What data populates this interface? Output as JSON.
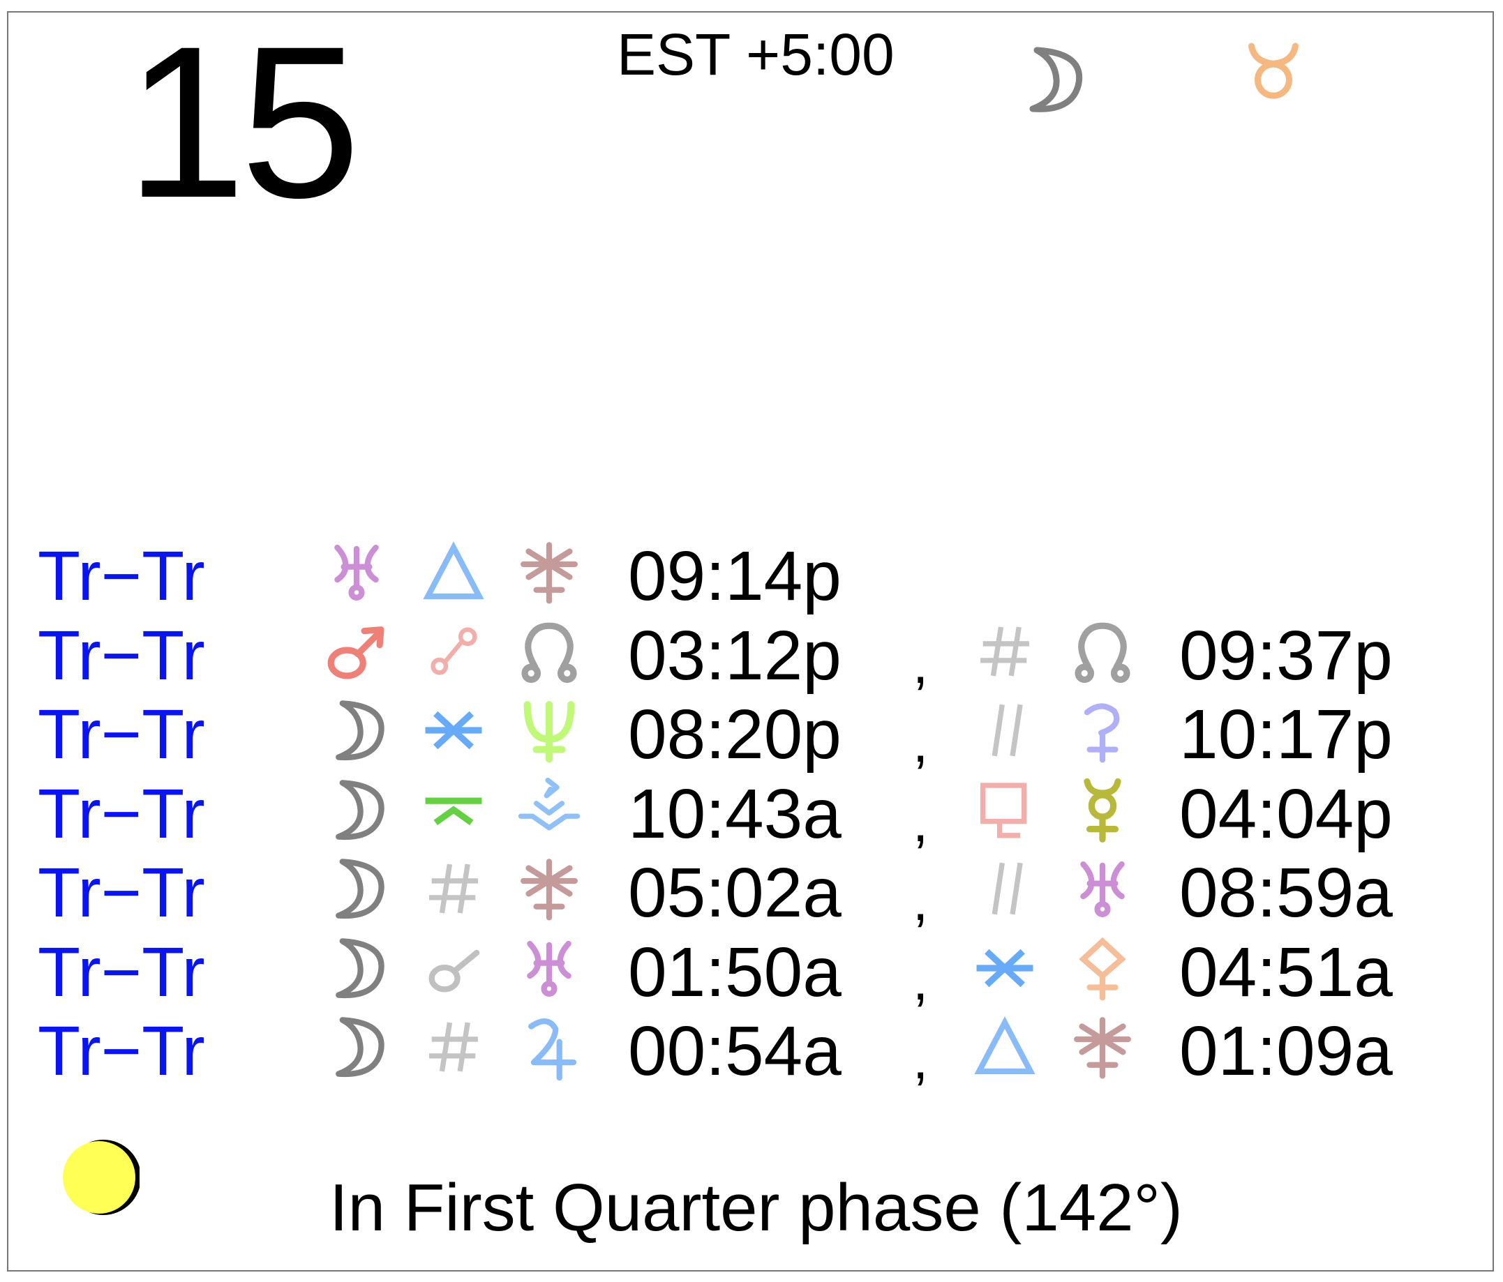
{
  "header": {
    "day": "15",
    "timezone": "EST +5:00",
    "moon_sign_icons": [
      {
        "icon": "moon-icon",
        "color": "#808080"
      },
      {
        "icon": "taurus-icon",
        "color": "#f5b880"
      }
    ]
  },
  "aspects": [
    {
      "label": "Tr−Tr",
      "planet": {
        "icon": "uranus",
        "color": "#cc8fd6"
      },
      "aspect": {
        "icon": "trine",
        "color": "#88bbf8"
      },
      "target": {
        "icon": "juno",
        "color": "#c49a9a"
      },
      "time": "09:14p",
      "second": null
    },
    {
      "label": "Tr−Tr",
      "planet": {
        "icon": "mars",
        "color": "#ee8078"
      },
      "aspect": {
        "icon": "opposition",
        "color": "#f2aeaa"
      },
      "target": {
        "icon": "node",
        "color": "#a0a0a0"
      },
      "time": "03:12p",
      "separator": ",",
      "second": {
        "aspect": {
          "icon": "parallel",
          "color": "#c4c4c4"
        },
        "target": {
          "icon": "node",
          "color": "#a0a0a0"
        },
        "time": "09:37p"
      }
    },
    {
      "label": "Tr−Tr",
      "planet": {
        "icon": "moon",
        "color": "#808080"
      },
      "aspect": {
        "icon": "sextile",
        "color": "#66aaf8"
      },
      "target": {
        "icon": "neptune",
        "color": "#c0f878"
      },
      "time": "08:20p",
      "separator": ",",
      "second": {
        "aspect": {
          "icon": "contraparallel",
          "color": "#c4c4c4"
        },
        "target": {
          "icon": "ceres",
          "color": "#b0b0f8"
        },
        "time": "10:17p"
      }
    },
    {
      "label": "Tr−Tr",
      "planet": {
        "icon": "moon",
        "color": "#808080"
      },
      "aspect": {
        "icon": "quincunx",
        "color": "#66d044"
      },
      "target": {
        "icon": "vesta",
        "color": "#90c0f8"
      },
      "time": "10:43a",
      "separator": ",",
      "second": {
        "aspect": {
          "icon": "sesquiquadrate",
          "color": "#f2aeaa"
        },
        "target": {
          "icon": "mercury",
          "color": "#b8b83a"
        },
        "time": "04:04p"
      }
    },
    {
      "label": "Tr−Tr",
      "planet": {
        "icon": "moon",
        "color": "#808080"
      },
      "aspect": {
        "icon": "parallel",
        "color": "#c4c4c4"
      },
      "target": {
        "icon": "juno",
        "color": "#c49a9a"
      },
      "time": "05:02a",
      "separator": ",",
      "second": {
        "aspect": {
          "icon": "contraparallel",
          "color": "#c4c4c4"
        },
        "target": {
          "icon": "uranus",
          "color": "#cc8fd6"
        },
        "time": "08:59a"
      }
    },
    {
      "label": "Tr−Tr",
      "planet": {
        "icon": "moon",
        "color": "#808080"
      },
      "aspect": {
        "icon": "conjunction",
        "color": "#c0c0c0"
      },
      "target": {
        "icon": "uranus",
        "color": "#cc8fd6"
      },
      "time": "01:50a",
      "separator": ",",
      "second": {
        "aspect": {
          "icon": "sextile",
          "color": "#66aaf8"
        },
        "target": {
          "icon": "pallas",
          "color": "#f5bd98"
        },
        "time": "04:51a"
      }
    },
    {
      "label": "Tr−Tr",
      "planet": {
        "icon": "moon",
        "color": "#808080"
      },
      "aspect": {
        "icon": "parallel",
        "color": "#c4c4c4"
      },
      "target": {
        "icon": "jupiter",
        "color": "#88bbf8"
      },
      "time": "00:54a",
      "separator": ",",
      "second": {
        "aspect": {
          "icon": "trine",
          "color": "#88bbf8"
        },
        "target": {
          "icon": "juno",
          "color": "#c49a9a"
        },
        "time": "01:09a"
      }
    }
  ],
  "moon_phase": {
    "icon": "moon-phase-icon",
    "color": "#ffff55",
    "text": "In First Quarter phase (142°)"
  }
}
